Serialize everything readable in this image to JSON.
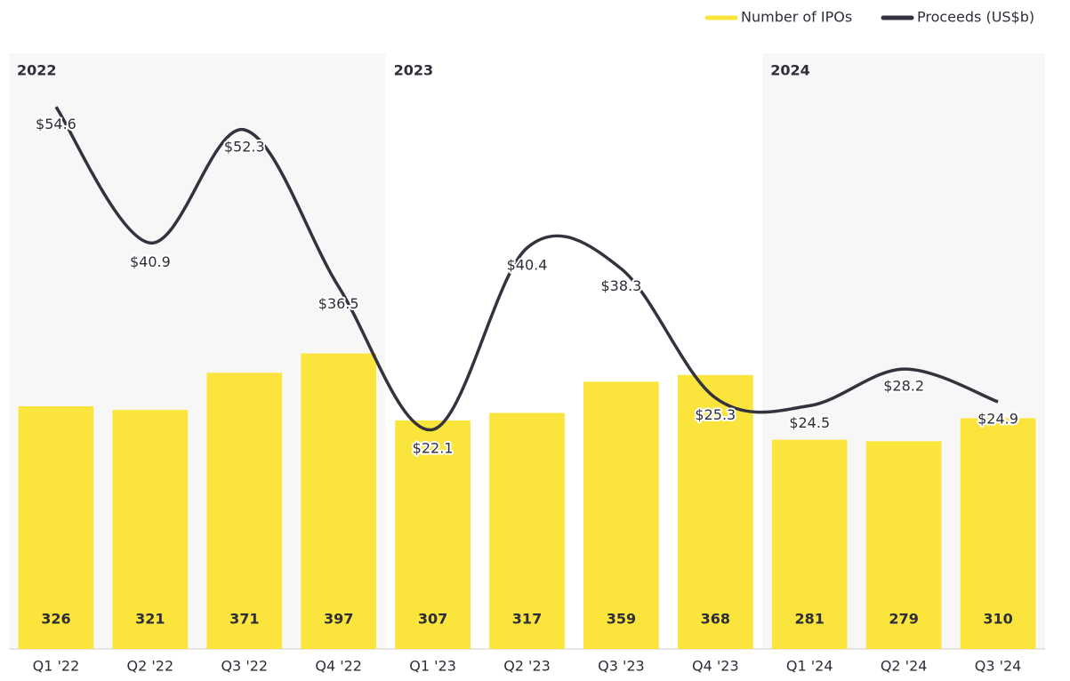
{
  "chart_data": {
    "type": "bar_line",
    "categories": [
      "Q1 '22",
      "Q2 '22",
      "Q3 '22",
      "Q4 '22",
      "Q1 '23",
      "Q2 '23",
      "Q3 '23",
      "Q4 '23",
      "Q1 '24",
      "Q2 '24",
      "Q3 '24"
    ],
    "periods": [
      "2022",
      "2023",
      "2024"
    ],
    "series": [
      {
        "name": "Number of IPOs",
        "type": "bar",
        "color": "#fbe43c",
        "values": [
          326,
          321,
          371,
          397,
          307,
          317,
          359,
          368,
          281,
          279,
          310
        ]
      },
      {
        "name": "Proceeds (US$b)",
        "type": "line",
        "axis": "y2",
        "color": "#33323d",
        "values": [
          54.6,
          40.9,
          52.3,
          36.5,
          22.1,
          40.4,
          38.3,
          25.3,
          24.5,
          28.2,
          24.9
        ],
        "value_labels": [
          "$54.6",
          "$40.9",
          "$52.3",
          "$36.5",
          "$22.1",
          "$40.4",
          "$38.3",
          "$25.3",
          "$24.5",
          "$28.2",
          "$24.9"
        ]
      }
    ],
    "ylim": [
      0,
      800
    ],
    "y2lim": [
      0,
      60
    ]
  }
}
